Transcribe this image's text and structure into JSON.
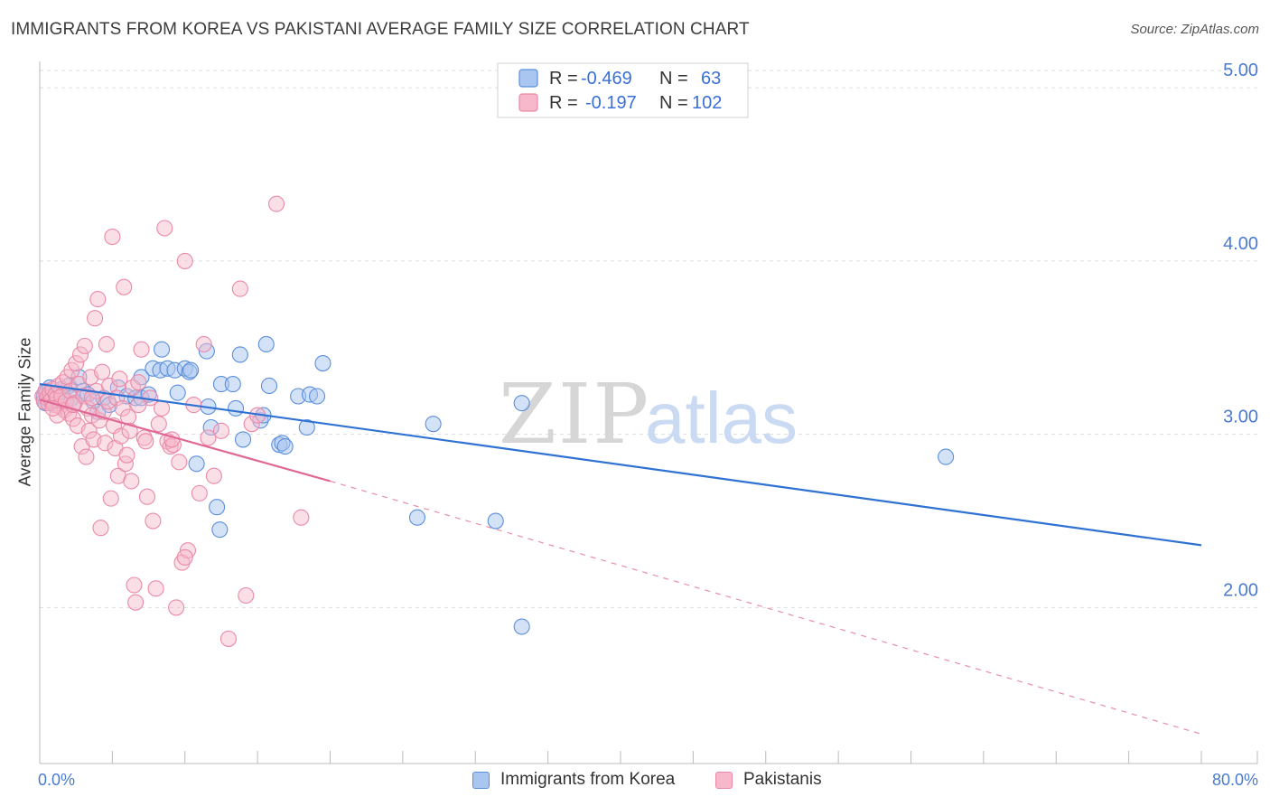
{
  "header": {
    "title": "IMMIGRANTS FROM KOREA VS PAKISTANI AVERAGE FAMILY SIZE CORRELATION CHART",
    "source": "Source: ZipAtlas.com"
  },
  "legend": {
    "korea": {
      "r_label": "R =",
      "r_value": "-0.469",
      "n_label": "N =",
      "n_value": "63"
    },
    "pakistani": {
      "r_label": "R =",
      "r_value": "-0.197",
      "n_label": "N =",
      "n_value": "102"
    }
  },
  "watermark": {
    "zip": "ZIP",
    "atlas": "atlas"
  },
  "colors": {
    "korea_fill": "#a9c6f0",
    "korea_stroke": "#5b8fdc",
    "korea_line": "#2f72d3",
    "pak_fill": "#f6b8ca",
    "pak_stroke": "#ea8aa8",
    "pak_line": "#e06894",
    "tick_label": "#4a7bd1",
    "grid": "#dddddd"
  },
  "chart_data": {
    "type": "scatter",
    "title": "IMMIGRANTS FROM KOREA VS PAKISTANI AVERAGE FAMILY SIZE CORRELATION CHART",
    "xlabel": "",
    "ylabel": "Average Family Size",
    "x_unit": "%",
    "xlim": [
      0,
      80
    ],
    "ylim": [
      1.1,
      5.1
    ],
    "y_ticks": [
      2.0,
      3.0,
      4.0,
      5.0
    ],
    "y_tick_labels": [
      "2.00",
      "3.00",
      "4.00",
      "5.00"
    ],
    "x_tick_labels": [
      "0.0%",
      "80.0%"
    ],
    "grid": "horizontal dashed",
    "legend_placement": "bottom-center",
    "series": [
      {
        "name": "Immigrants from Korea",
        "r": -0.469,
        "n": 63,
        "trend": {
          "x": [
            0,
            80
          ],
          "y": [
            3.29,
            2.36
          ]
        },
        "points": [
          [
            0.3,
            3.22
          ],
          [
            0.4,
            3.18
          ],
          [
            0.5,
            3.25
          ],
          [
            0.6,
            3.2
          ],
          [
            0.7,
            3.27
          ],
          [
            0.8,
            3.19
          ],
          [
            0.9,
            3.23
          ],
          [
            1.0,
            3.21
          ],
          [
            1.1,
            3.17
          ],
          [
            1.2,
            3.24
          ],
          [
            1.3,
            3.2
          ],
          [
            1.5,
            3.26
          ],
          [
            1.6,
            3.22
          ],
          [
            1.8,
            3.19
          ],
          [
            2.0,
            3.28
          ],
          [
            2.2,
            3.21
          ],
          [
            2.4,
            3.18
          ],
          [
            2.7,
            3.33
          ],
          [
            3.0,
            3.25
          ],
          [
            3.3,
            3.23
          ],
          [
            3.7,
            3.19
          ],
          [
            4.0,
            3.13
          ],
          [
            4.4,
            3.21
          ],
          [
            4.8,
            3.17
          ],
          [
            5.4,
            3.27
          ],
          [
            6.0,
            3.22
          ],
          [
            6.6,
            3.21
          ],
          [
            7.0,
            3.21
          ],
          [
            7.5,
            3.23
          ],
          [
            7.0,
            3.33
          ],
          [
            7.8,
            3.38
          ],
          [
            8.3,
            3.37
          ],
          [
            8.4,
            3.49
          ],
          [
            8.8,
            3.38
          ],
          [
            9.5,
            3.24
          ],
          [
            9.3,
            3.37
          ],
          [
            10.0,
            3.38
          ],
          [
            10.3,
            3.36
          ],
          [
            10.4,
            3.37
          ],
          [
            10.8,
            2.83
          ],
          [
            11.5,
            3.48
          ],
          [
            11.8,
            3.04
          ],
          [
            11.6,
            3.16
          ],
          [
            12.2,
            2.58
          ],
          [
            12.4,
            2.45
          ],
          [
            12.5,
            3.29
          ],
          [
            13.3,
            3.29
          ],
          [
            13.5,
            3.15
          ],
          [
            13.8,
            3.46
          ],
          [
            14.0,
            2.97
          ],
          [
            15.2,
            3.08
          ],
          [
            15.4,
            3.11
          ],
          [
            15.6,
            3.52
          ],
          [
            15.8,
            3.28
          ],
          [
            16.5,
            2.94
          ],
          [
            16.7,
            2.95
          ],
          [
            16.9,
            2.93
          ],
          [
            17.8,
            3.22
          ],
          [
            18.4,
            3.04
          ],
          [
            18.6,
            3.23
          ],
          [
            19.1,
            3.22
          ],
          [
            19.5,
            3.41
          ],
          [
            27.1,
            3.06
          ],
          [
            33.2,
            3.18
          ],
          [
            62.4,
            2.87
          ],
          [
            26.0,
            2.52
          ],
          [
            31.4,
            2.5
          ],
          [
            33.2,
            1.89
          ]
        ]
      },
      {
        "name": "Pakistanis",
        "r": -0.197,
        "n": 102,
        "trend_solid": {
          "x": [
            0,
            20
          ],
          "y": [
            3.2,
            2.73
          ]
        },
        "trend_dashed": {
          "x": [
            20,
            80
          ],
          "y": [
            2.73,
            1.27
          ]
        },
        "points": [
          [
            0.2,
            3.22
          ],
          [
            0.3,
            3.19
          ],
          [
            0.4,
            3.25
          ],
          [
            0.5,
            3.21
          ],
          [
            0.6,
            3.18
          ],
          [
            0.7,
            3.24
          ],
          [
            0.8,
            3.2
          ],
          [
            0.9,
            3.26
          ],
          [
            1.0,
            3.17
          ],
          [
            1.1,
            3.23
          ],
          [
            1.2,
            3.21
          ],
          [
            1.3,
            3.28
          ],
          [
            1.4,
            3.16
          ],
          [
            1.5,
            3.22
          ],
          [
            1.6,
            3.3
          ],
          [
            1.7,
            3.14
          ],
          [
            1.8,
            3.19
          ],
          [
            1.9,
            3.33
          ],
          [
            2.0,
            3.12
          ],
          [
            2.1,
            3.25
          ],
          [
            2.2,
            3.37
          ],
          [
            2.3,
            3.09
          ],
          [
            2.4,
            3.18
          ],
          [
            2.5,
            3.41
          ],
          [
            2.6,
            3.05
          ],
          [
            2.7,
            3.29
          ],
          [
            2.8,
            3.46
          ],
          [
            2.9,
            2.93
          ],
          [
            3.0,
            3.22
          ],
          [
            3.1,
            3.51
          ],
          [
            3.2,
            2.87
          ],
          [
            3.3,
            3.15
          ],
          [
            3.4,
            3.02
          ],
          [
            3.5,
            3.33
          ],
          [
            3.6,
            3.11
          ],
          [
            3.7,
            2.97
          ],
          [
            3.8,
            3.67
          ],
          [
            3.9,
            3.25
          ],
          [
            4.0,
            3.78
          ],
          [
            4.1,
            3.08
          ],
          [
            4.2,
            2.46
          ],
          [
            4.3,
            3.36
          ],
          [
            4.4,
            3.13
          ],
          [
            4.5,
            2.95
          ],
          [
            4.6,
            3.52
          ],
          [
            4.7,
            3.19
          ],
          [
            4.8,
            3.28
          ],
          [
            4.9,
            2.63
          ],
          [
            5.0,
            4.14
          ],
          [
            5.1,
            3.05
          ],
          [
            5.2,
            2.92
          ],
          [
            5.3,
            3.21
          ],
          [
            5.4,
            2.76
          ],
          [
            5.5,
            3.32
          ],
          [
            5.6,
            2.99
          ],
          [
            5.7,
            3.15
          ],
          [
            5.8,
            3.85
          ],
          [
            5.9,
            2.83
          ],
          [
            6.0,
            2.88
          ],
          [
            6.1,
            3.1
          ],
          [
            6.2,
            3.02
          ],
          [
            6.3,
            2.73
          ],
          [
            6.4,
            3.27
          ],
          [
            6.5,
            2.13
          ],
          [
            6.6,
            2.03
          ],
          [
            6.8,
            3.3
          ],
          [
            7.0,
            3.49
          ],
          [
            7.2,
            2.98
          ],
          [
            7.4,
            2.64
          ],
          [
            7.6,
            3.21
          ],
          [
            7.8,
            2.5
          ],
          [
            8.0,
            2.11
          ],
          [
            8.2,
            3.06
          ],
          [
            8.4,
            3.15
          ],
          [
            8.6,
            4.19
          ],
          [
            8.8,
            2.96
          ],
          [
            9.0,
            2.93
          ],
          [
            9.2,
            2.94
          ],
          [
            9.4,
            2.0
          ],
          [
            9.6,
            2.84
          ],
          [
            9.8,
            2.26
          ],
          [
            10.0,
            4.0
          ],
          [
            10.2,
            2.33
          ],
          [
            10.6,
            3.17
          ],
          [
            11.0,
            2.66
          ],
          [
            11.3,
            3.52
          ],
          [
            11.6,
            2.98
          ],
          [
            12.0,
            2.76
          ],
          [
            12.5,
            3.02
          ],
          [
            13.0,
            1.82
          ],
          [
            13.8,
            3.84
          ],
          [
            14.2,
            2.07
          ],
          [
            14.6,
            3.06
          ],
          [
            15.0,
            3.11
          ],
          [
            16.3,
            4.33
          ],
          [
            18.0,
            2.52
          ],
          [
            2.3,
            3.17
          ],
          [
            3.6,
            3.21
          ],
          [
            1.2,
            3.11
          ],
          [
            0.9,
            3.15
          ],
          [
            6.8,
            3.17
          ],
          [
            7.3,
            2.96
          ],
          [
            9.1,
            2.97
          ],
          [
            10.0,
            2.29
          ]
        ]
      }
    ]
  },
  "bottom_legend": {
    "korea_label": "Immigrants from Korea",
    "pak_label": "Pakistanis"
  }
}
